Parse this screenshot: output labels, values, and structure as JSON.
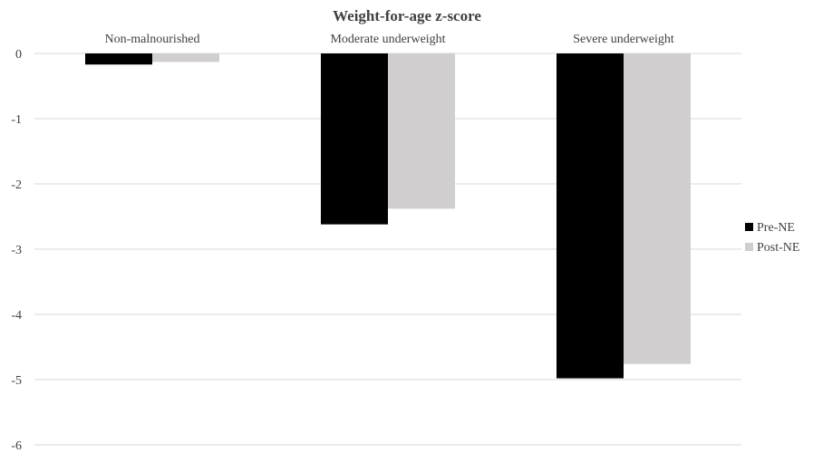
{
  "chart_data": {
    "type": "bar",
    "title": "Weight-for-age z-score",
    "xlabel": "",
    "ylabel": "",
    "categories": [
      "Non-malnourished",
      "Moderate underweight",
      "Severe underweight"
    ],
    "series": [
      {
        "name": "Pre-NE",
        "color": "#000000",
        "values": [
          -0.17,
          -2.62,
          -4.98
        ]
      },
      {
        "name": "Post-NE",
        "color": "#d0cece",
        "values": [
          -0.13,
          -2.38,
          -4.76
        ]
      }
    ],
    "ylim": [
      -6,
      0
    ],
    "yticks": [
      0,
      -1,
      -2,
      -3,
      -4,
      -5,
      -6
    ],
    "grid": true,
    "category_labels_position": "top",
    "legend_position": "right"
  }
}
